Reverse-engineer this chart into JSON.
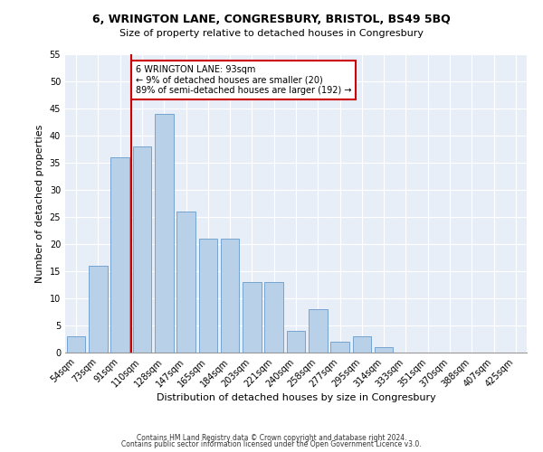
{
  "title1": "6, WRINGTON LANE, CONGRESBURY, BRISTOL, BS49 5BQ",
  "title2": "Size of property relative to detached houses in Congresbury",
  "xlabel": "Distribution of detached houses by size in Congresbury",
  "ylabel": "Number of detached properties",
  "categories": [
    "54sqm",
    "73sqm",
    "91sqm",
    "110sqm",
    "128sqm",
    "147sqm",
    "165sqm",
    "184sqm",
    "203sqm",
    "221sqm",
    "240sqm",
    "258sqm",
    "277sqm",
    "295sqm",
    "314sqm",
    "333sqm",
    "351sqm",
    "370sqm",
    "388sqm",
    "407sqm",
    "425sqm"
  ],
  "values": [
    3,
    16,
    36,
    38,
    44,
    26,
    21,
    21,
    13,
    13,
    4,
    8,
    2,
    3,
    1,
    0,
    0,
    0,
    0,
    0,
    0
  ],
  "bar_color": "#b8d0e8",
  "bar_edge_color": "#6699cc",
  "background_color": "#e8eef8",
  "grid_color": "#ffffff",
  "vline_x": 2.5,
  "vline_color": "#cc0000",
  "annotation_line1": "6 WRINGTON LANE: 93sqm",
  "annotation_line2": "← 9% of detached houses are smaller (20)",
  "annotation_line3": "89% of semi-detached houses are larger (192) →",
  "annotation_box_edge": "#cc0000",
  "footnote1": "Contains HM Land Registry data © Crown copyright and database right 2024.",
  "footnote2": "Contains public sector information licensed under the Open Government Licence v3.0.",
  "ylim": [
    0,
    55
  ],
  "yticks": [
    0,
    5,
    10,
    15,
    20,
    25,
    30,
    35,
    40,
    45,
    50,
    55
  ],
  "title1_fontsize": 9,
  "title2_fontsize": 8,
  "ylabel_fontsize": 8,
  "xlabel_fontsize": 8,
  "tick_fontsize": 7,
  "annot_fontsize": 7,
  "footnote_fontsize": 5.5
}
